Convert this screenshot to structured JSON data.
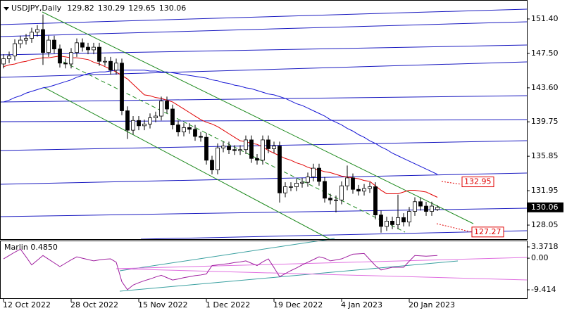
{
  "chart_data": [
    {
      "type": "candlestick",
      "title": "USDJPY,Daily",
      "categories": [
        "12 Oct 2022",
        null,
        null,
        null,
        null,
        null,
        null,
        null,
        null,
        null,
        null,
        null,
        "28 Oct 2022",
        null,
        null,
        null,
        null,
        null,
        null,
        null,
        null,
        null,
        null,
        null,
        "15 Nov 2022",
        null,
        null,
        null,
        null,
        null,
        null,
        null,
        null,
        null,
        null,
        null,
        "1 Dec 2022",
        null,
        null,
        null,
        null,
        null,
        null,
        null,
        null,
        null,
        null,
        null,
        "19 Dec 2022",
        null,
        null,
        null,
        null,
        null,
        null,
        null,
        null,
        null,
        null,
        null,
        "4 Jan 2023",
        null,
        null,
        null,
        null,
        null,
        null,
        null,
        null,
        null,
        null,
        null,
        "20 Jan 2023",
        null,
        null,
        null,
        null,
        null
      ],
      "open": [
        146.3,
        146.9,
        147.2,
        148.6,
        149.0,
        149.2,
        149.9,
        150.2,
        147.6,
        149.0,
        148.0,
        146.4,
        146.3,
        147.6,
        148.7,
        148.2,
        147.9,
        148.2,
        146.6,
        146.6,
        145.6,
        146.4,
        141.0,
        138.8,
        139.9,
        139.3,
        139.5,
        140.2,
        140.4,
        142.1,
        141.2,
        139.4,
        138.6,
        139.1,
        138.9,
        138.1,
        138.0,
        135.4,
        134.3,
        136.8,
        137.0,
        136.6,
        136.5,
        136.6,
        137.7,
        135.6,
        135.4,
        137.7,
        136.7,
        137.0,
        131.7,
        132.4,
        132.4,
        132.8,
        132.9,
        133.5,
        134.5,
        133.0,
        131.1,
        130.9,
        130.9,
        132.5,
        133.4,
        132.1,
        131.9,
        132.2,
        132.4,
        129.2,
        127.9,
        128.5,
        128.1,
        128.9,
        128.4,
        129.6,
        130.7,
        130.2,
        129.6,
        129.82
      ],
      "high": [
        147.4,
        147.7,
        149.1,
        149.5,
        149.7,
        150.4,
        150.7,
        151.9,
        149.5,
        149.5,
        148.5,
        146.9,
        148.1,
        149.2,
        149.2,
        148.7,
        148.7,
        148.7,
        147.1,
        147.1,
        146.9,
        146.9,
        141.5,
        140.4,
        140.4,
        140.0,
        140.7,
        140.9,
        142.6,
        142.6,
        141.7,
        139.9,
        139.6,
        139.6,
        139.4,
        138.6,
        138.5,
        135.9,
        137.3,
        137.5,
        137.5,
        137.1,
        137.1,
        138.2,
        138.2,
        136.1,
        138.2,
        138.2,
        137.5,
        137.5,
        132.9,
        132.9,
        133.3,
        133.4,
        134.0,
        135.0,
        135.0,
        133.5,
        131.6,
        131.4,
        133.0,
        134.8,
        133.9,
        132.6,
        132.7,
        132.9,
        132.9,
        129.7,
        129.0,
        129.0,
        131.5,
        129.4,
        130.1,
        131.2,
        131.2,
        130.7,
        130.7,
        130.29
      ],
      "low": [
        145.8,
        146.4,
        146.7,
        148.1,
        148.5,
        148.7,
        149.4,
        146.2,
        147.1,
        147.5,
        145.9,
        145.8,
        145.8,
        147.1,
        147.7,
        147.4,
        147.4,
        146.1,
        146.1,
        145.1,
        145.1,
        140.5,
        137.8,
        138.3,
        138.8,
        138.8,
        139.0,
        139.7,
        139.9,
        140.7,
        138.9,
        138.1,
        138.1,
        138.4,
        137.6,
        137.5,
        134.9,
        133.8,
        133.8,
        136.3,
        136.1,
        136.0,
        136.0,
        136.1,
        135.1,
        134.9,
        134.9,
        136.2,
        136.2,
        130.6,
        131.2,
        131.9,
        131.9,
        132.3,
        132.4,
        133.0,
        132.5,
        130.6,
        130.4,
        129.5,
        130.4,
        132.0,
        131.6,
        131.4,
        131.4,
        131.7,
        128.7,
        127.2,
        127.4,
        127.6,
        127.6,
        127.9,
        127.9,
        129.1,
        129.7,
        129.1,
        129.1,
        129.65
      ],
      "close": [
        146.9,
        147.2,
        148.6,
        149.0,
        149.2,
        149.9,
        150.2,
        147.6,
        149.0,
        148.0,
        146.4,
        146.3,
        147.6,
        148.7,
        148.2,
        147.9,
        148.2,
        146.6,
        146.6,
        145.6,
        146.4,
        141.0,
        138.8,
        139.9,
        139.3,
        139.5,
        140.2,
        140.4,
        142.1,
        141.2,
        139.4,
        138.6,
        139.1,
        138.9,
        138.1,
        138.0,
        135.4,
        134.3,
        136.8,
        137.0,
        136.6,
        136.5,
        136.6,
        137.7,
        135.6,
        135.4,
        137.7,
        136.7,
        137.0,
        131.7,
        132.4,
        132.4,
        132.8,
        132.9,
        133.5,
        134.5,
        133.0,
        131.1,
        130.9,
        130.9,
        132.5,
        133.4,
        132.1,
        131.9,
        132.2,
        132.4,
        129.2,
        127.9,
        128.5,
        128.1,
        128.9,
        128.4,
        129.6,
        130.7,
        130.2,
        129.6,
        130.2,
        130.06
      ],
      "series": [
        {
          "color": "#e00000",
          "values": [
            146.0,
            146.2,
            146.3,
            146.5,
            146.6,
            146.8,
            146.9,
            147.0,
            147.0,
            147.1,
            147.2,
            147.1,
            147.0,
            147.0,
            146.9,
            146.8,
            146.5,
            146.3,
            146.0,
            145.7,
            145.4,
            145.0,
            144.6,
            144.0,
            143.4,
            142.8,
            142.7,
            142.5,
            142.4,
            142.2,
            142.0,
            141.6,
            141.2,
            140.8,
            140.4,
            140.0,
            139.7,
            139.5,
            139.2,
            138.8,
            138.4,
            138.0,
            137.6,
            137.5,
            137.3,
            137.2,
            136.9,
            136.5,
            136.2,
            135.9,
            135.6,
            135.4,
            135.1,
            134.9,
            134.6,
            134.4,
            134.3,
            134.1,
            134.0,
            133.8,
            133.6,
            133.5,
            133.4,
            133.3,
            133.1,
            133.0,
            132.5,
            132.0,
            131.6,
            131.6,
            131.6,
            131.8,
            132.0,
            132.0,
            131.9,
            131.8,
            131.5,
            131.2
          ]
        },
        {
          "color": "#1414d4",
          "values": [
            142.0,
            142.2,
            142.5,
            142.7,
            143.0,
            143.2,
            143.4,
            143.6,
            143.7,
            143.9,
            144.1,
            144.3,
            144.5,
            144.8,
            145.0,
            145.2,
            145.3,
            145.4,
            145.4,
            145.5,
            145.6,
            145.6,
            145.6,
            145.6,
            145.6,
            145.6,
            145.5,
            145.5,
            145.4,
            145.4,
            145.3,
            145.2,
            145.1,
            145.0,
            144.9,
            144.8,
            144.7,
            144.5,
            144.4,
            144.2,
            144.1,
            143.9,
            143.8,
            143.6,
            143.5,
            143.3,
            143.1,
            142.9,
            142.8,
            142.6,
            142.4,
            142.1,
            141.8,
            141.6,
            141.3,
            141.0,
            140.7,
            140.4,
            140.0,
            139.7,
            139.4,
            139.0,
            138.7,
            138.3,
            138.0,
            137.6,
            137.3,
            136.9,
            136.6,
            136.2,
            135.9,
            135.6,
            135.3,
            135.0,
            134.7,
            134.4,
            134.1,
            133.8
          ]
        }
      ],
      "annotations": [
        132.95,
        127.27
      ],
      "ylim": [
        126.46,
        152.91
      ],
      "yticks": [
        {
          "value": 151.4,
          "label": "151.40"
        },
        {
          "value": 147.5,
          "label": "147.50"
        },
        {
          "value": 143.6,
          "label": "143.60"
        },
        139.75,
        135.85,
        131.95,
        128.05
      ],
      "up_color": "#ffffff",
      "down_color": "#000000"
    },
    {
      "type": "line",
      "title": "Marlin 0.4850",
      "series": [
        {
          "color": "#a020a0",
          "values": [
            -0.2,
            0.8,
            1.8,
            2.7,
            0.4,
            -2.0,
            -0.6,
            0.8,
            -0.3,
            -1.4,
            -2.5,
            -1.5,
            -0.5,
            0.4,
            0.0,
            -0.4,
            -0.8,
            -0.5,
            -0.3,
            -0.2,
            -1.2,
            -7.0,
            -9.4,
            -8.0,
            -7.3,
            -6.7,
            -6.2,
            -5.6,
            -5.1,
            -5.8,
            -6.5,
            -6.2,
            -5.8,
            -5.5,
            -5.2,
            -5.0,
            -4.7,
            -2.2,
            -2.0,
            -1.8,
            -1.6,
            -1.3,
            -1.1,
            -0.8,
            -1.5,
            -2.2,
            -1.1,
            -0.2,
            -2.8,
            -5.5,
            -4.6,
            -3.7,
            -2.9,
            -2.0,
            -1.2,
            -0.4,
            0.4,
            0.0,
            -0.8,
            -0.5,
            -0.2,
            0.5,
            1.2,
            1.3,
            1.4,
            -0.4,
            -2.2,
            -3.5,
            -3.1,
            -2.7,
            -2.7,
            -2.7,
            -0.9,
            0.8,
            0.7,
            0.6,
            0.7,
            0.8
          ]
        }
      ],
      "ylim": [
        -12.14,
        5.05
      ],
      "yticks": [
        3.3718,
        {
          "value": 0,
          "label": "0.00"
        },
        -9.414
      ]
    }
  ]
}
